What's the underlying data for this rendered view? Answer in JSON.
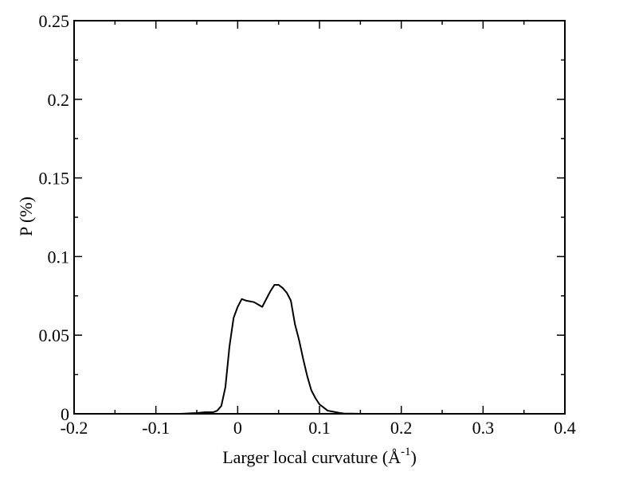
{
  "chart_data": {
    "type": "line",
    "title": "",
    "xlabel": "Larger local curvature (Å",
    "xlabel_superscript": "-1",
    "xlabel_suffix": ")",
    "ylabel": "P (%)",
    "xlim": [
      -0.2,
      0.4
    ],
    "ylim": [
      0,
      0.25
    ],
    "xticks": [
      -0.2,
      -0.1,
      0,
      0.1,
      0.2,
      0.3,
      0.4
    ],
    "xtick_labels": [
      "-0.2",
      "-0.1",
      "0",
      "0.1",
      "0.2",
      "0.3",
      "0.4"
    ],
    "yticks": [
      0,
      0.05,
      0.1,
      0.15,
      0.2,
      0.25
    ],
    "ytick_labels": [
      "0",
      "0.05",
      "0.1",
      "0.15",
      "0.2",
      "0.25"
    ],
    "grid": false,
    "legend": "none",
    "line_color": "#000000",
    "series": [
      {
        "x": [
          -0.07,
          -0.05,
          -0.04,
          -0.03,
          -0.025,
          -0.02,
          -0.015,
          -0.01,
          -0.005,
          0.0,
          0.005,
          0.01,
          0.02,
          0.03,
          0.035,
          0.04,
          0.045,
          0.05,
          0.055,
          0.06,
          0.065,
          0.07,
          0.075,
          0.08,
          0.085,
          0.09,
          0.095,
          0.1,
          0.105,
          0.11,
          0.115,
          0.12,
          0.125,
          0.13,
          0.14,
          0.15,
          0.16,
          0.17
        ],
        "y": [
          0.0,
          0.0005,
          0.001,
          0.001,
          0.002,
          0.005,
          0.017,
          0.043,
          0.061,
          0.068,
          0.073,
          0.072,
          0.071,
          0.068,
          0.073,
          0.078,
          0.082,
          0.082,
          0.08,
          0.077,
          0.072,
          0.057,
          0.047,
          0.035,
          0.024,
          0.015,
          0.01,
          0.006,
          0.004,
          0.002,
          0.0015,
          0.001,
          0.0005,
          0.0002,
          0.0001,
          0.0,
          0.0,
          0.0
        ]
      }
    ]
  }
}
